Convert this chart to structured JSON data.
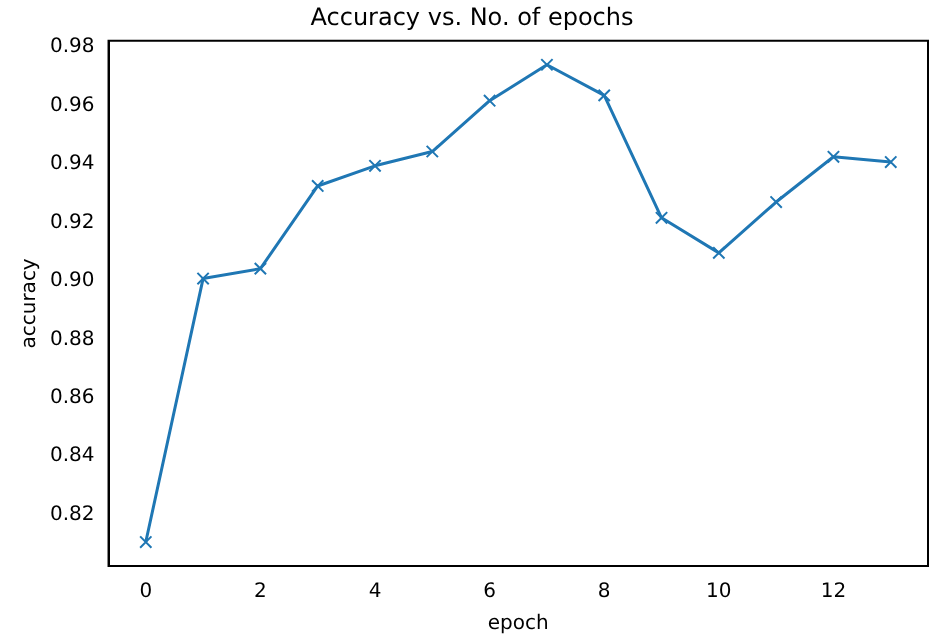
{
  "chart_data": {
    "type": "line",
    "title": "Accuracy vs. No. of epochs",
    "xlabel": "epoch",
    "ylabel": "accuracy",
    "x": [
      0,
      1,
      2,
      3,
      4,
      5,
      6,
      7,
      8,
      9,
      10,
      11,
      12,
      13
    ],
    "series": [
      {
        "color": "#1f77b4",
        "values": [
          0.8106,
          0.9008,
          0.9042,
          0.9325,
          0.9394,
          0.9443,
          0.9617,
          0.974,
          0.9635,
          0.9216,
          0.9096,
          0.927,
          0.9425,
          0.9407
        ]
      }
    ],
    "xlim": [
      -0.65,
      13.65
    ],
    "xticks": [
      0,
      2,
      4,
      6,
      8,
      10,
      12
    ],
    "ylim": [
      0.8024,
      0.9822
    ],
    "yticks": [
      0.82,
      0.84,
      0.86,
      0.88,
      {
        "value": 0.9,
        "label": "0.90"
      },
      0.92,
      0.94,
      0.96,
      0.98
    ],
    "marker": "cross",
    "line_style": "solid",
    "grid": false,
    "legend": false
  }
}
